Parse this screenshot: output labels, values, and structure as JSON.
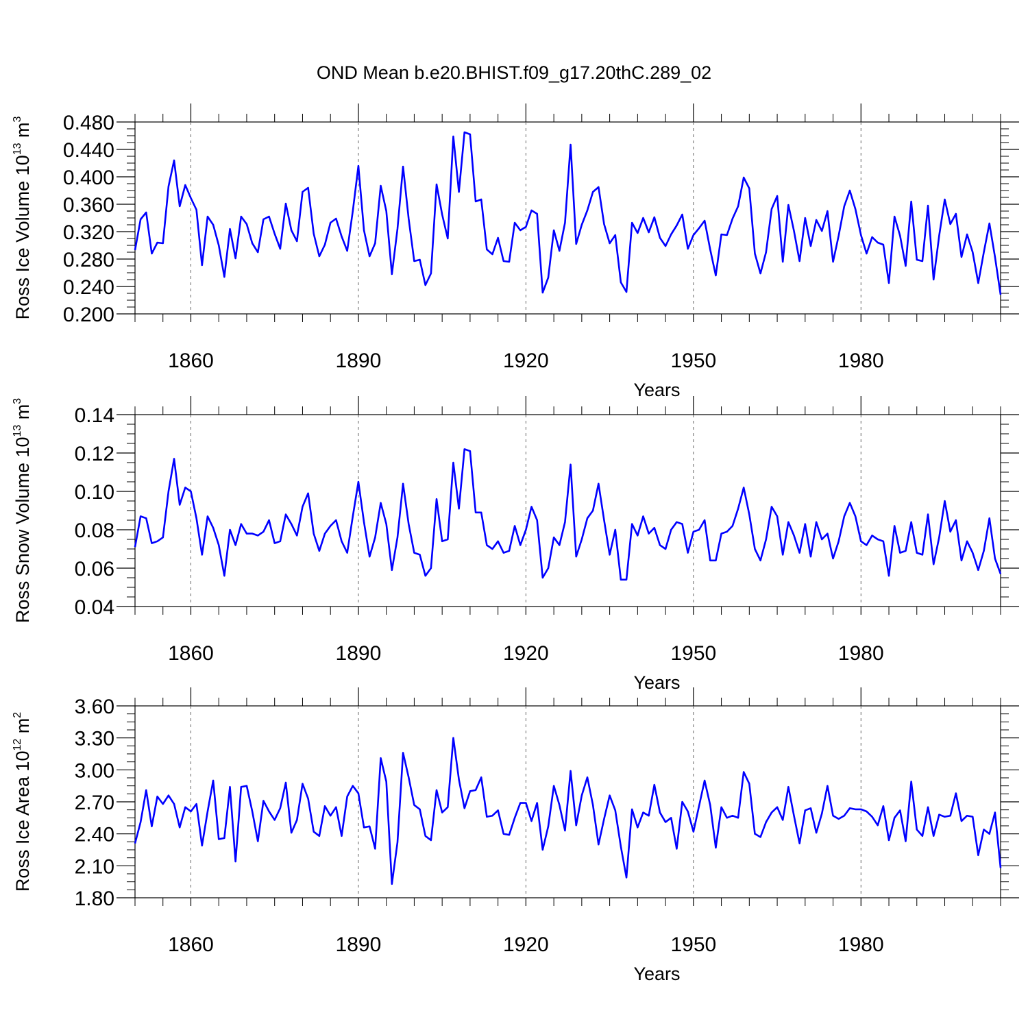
{
  "title": "OND Mean b.e20.BHIST.f09_g17.20thC.289_02",
  "chart_data": [
    {
      "type": "line",
      "id": "ice-volume",
      "color": "#0000ff",
      "ylabel": {
        "text": "Ross Ice Volume 10",
        "exp": "13",
        "unit": "m",
        "unit_exp": "3"
      },
      "xlabel": "Years",
      "xlim": [
        1850,
        2005
      ],
      "ylim": [
        0.2,
        0.48
      ],
      "yticks": [
        0.2,
        0.24,
        0.28,
        0.32,
        0.36,
        0.4,
        0.44,
        0.48
      ],
      "ytick_labels": [
        "0.200",
        "0.240",
        "0.280",
        "0.320",
        "0.360",
        "0.400",
        "0.440",
        "0.480"
      ],
      "xticks": [
        1860,
        1890,
        1920,
        1950,
        1980
      ],
      "xtick_labels": [
        "1860",
        "1890",
        "1920",
        "1950",
        "1980"
      ],
      "x_start": 1850,
      "values": [
        0.293,
        0.338,
        0.348,
        0.288,
        0.304,
        0.303,
        0.386,
        0.424,
        0.357,
        0.388,
        0.369,
        0.352,
        0.271,
        0.342,
        0.33,
        0.3,
        0.254,
        0.324,
        0.281,
        0.342,
        0.331,
        0.303,
        0.29,
        0.338,
        0.342,
        0.317,
        0.295,
        0.361,
        0.322,
        0.306,
        0.378,
        0.384,
        0.317,
        0.284,
        0.301,
        0.333,
        0.339,
        0.313,
        0.292,
        0.35,
        0.416,
        0.322,
        0.284,
        0.303,
        0.387,
        0.35,
        0.258,
        0.324,
        0.415,
        0.339,
        0.277,
        0.279,
        0.242,
        0.259,
        0.389,
        0.345,
        0.31,
        0.459,
        0.378,
        0.465,
        0.462,
        0.364,
        0.367,
        0.294,
        0.287,
        0.311,
        0.277,
        0.276,
        0.333,
        0.322,
        0.327,
        0.351,
        0.346,
        0.231,
        0.253,
        0.322,
        0.292,
        0.333,
        0.447,
        0.302,
        0.33,
        0.351,
        0.378,
        0.385,
        0.331,
        0.303,
        0.315,
        0.246,
        0.232,
        0.333,
        0.318,
        0.34,
        0.319,
        0.341,
        0.311,
        0.299,
        0.316,
        0.329,
        0.345,
        0.295,
        0.315,
        0.325,
        0.336,
        0.294,
        0.256,
        0.316,
        0.315,
        0.339,
        0.357,
        0.399,
        0.383,
        0.288,
        0.259,
        0.29,
        0.353,
        0.372,
        0.276,
        0.359,
        0.321,
        0.277,
        0.34,
        0.299,
        0.337,
        0.321,
        0.35,
        0.276,
        0.314,
        0.357,
        0.38,
        0.353,
        0.315,
        0.288,
        0.312,
        0.304,
        0.301,
        0.245,
        0.342,
        0.314,
        0.27,
        0.364,
        0.279,
        0.277,
        0.358,
        0.25,
        0.314,
        0.367,
        0.331,
        0.346,
        0.283,
        0.316,
        0.29,
        0.245,
        0.29,
        0.332,
        0.283,
        0.228
      ]
    },
    {
      "type": "line",
      "id": "snow-volume",
      "color": "#0000ff",
      "ylabel": {
        "text": "Ross Snow Volume 10",
        "exp": "13",
        "unit": "m",
        "unit_exp": "3"
      },
      "xlabel": "Years",
      "xlim": [
        1850,
        2005
      ],
      "ylim": [
        0.04,
        0.14
      ],
      "yticks": [
        0.04,
        0.06,
        0.08,
        0.1,
        0.12,
        0.14
      ],
      "ytick_labels": [
        "0.04",
        "0.06",
        "0.08",
        "0.10",
        "0.12",
        "0.14"
      ],
      "xticks": [
        1860,
        1890,
        1920,
        1950,
        1980
      ],
      "xtick_labels": [
        "1860",
        "1890",
        "1920",
        "1950",
        "1980"
      ],
      "x_start": 1850,
      "values": [
        0.071,
        0.087,
        0.086,
        0.073,
        0.074,
        0.076,
        0.1,
        0.117,
        0.093,
        0.102,
        0.1,
        0.086,
        0.067,
        0.087,
        0.081,
        0.072,
        0.056,
        0.08,
        0.072,
        0.083,
        0.078,
        0.078,
        0.077,
        0.079,
        0.085,
        0.073,
        0.074,
        0.088,
        0.083,
        0.077,
        0.092,
        0.099,
        0.078,
        0.069,
        0.078,
        0.082,
        0.085,
        0.074,
        0.068,
        0.087,
        0.105,
        0.084,
        0.066,
        0.076,
        0.094,
        0.083,
        0.059,
        0.076,
        0.104,
        0.083,
        0.068,
        0.067,
        0.056,
        0.06,
        0.096,
        0.074,
        0.075,
        0.115,
        0.091,
        0.122,
        0.121,
        0.089,
        0.089,
        0.072,
        0.07,
        0.074,
        0.068,
        0.069,
        0.082,
        0.072,
        0.08,
        0.092,
        0.085,
        0.055,
        0.06,
        0.076,
        0.072,
        0.084,
        0.114,
        0.066,
        0.075,
        0.086,
        0.09,
        0.104,
        0.085,
        0.067,
        0.08,
        0.054,
        0.054,
        0.083,
        0.077,
        0.087,
        0.078,
        0.081,
        0.072,
        0.07,
        0.08,
        0.084,
        0.083,
        0.068,
        0.079,
        0.08,
        0.085,
        0.064,
        0.064,
        0.078,
        0.079,
        0.082,
        0.091,
        0.102,
        0.088,
        0.07,
        0.064,
        0.075,
        0.092,
        0.087,
        0.067,
        0.084,
        0.077,
        0.068,
        0.083,
        0.066,
        0.084,
        0.075,
        0.078,
        0.065,
        0.074,
        0.087,
        0.094,
        0.087,
        0.074,
        0.072,
        0.077,
        0.075,
        0.074,
        0.056,
        0.082,
        0.068,
        0.069,
        0.084,
        0.068,
        0.067,
        0.088,
        0.062,
        0.076,
        0.095,
        0.079,
        0.085,
        0.064,
        0.074,
        0.068,
        0.059,
        0.069,
        0.086,
        0.065,
        0.057
      ]
    },
    {
      "type": "line",
      "id": "ice-area",
      "color": "#0000ff",
      "ylabel": {
        "text": "Ross Ice Area 10",
        "exp": "12",
        "unit": "m",
        "unit_exp": "2"
      },
      "xlabel": "Years",
      "xlim": [
        1850,
        2005
      ],
      "ylim": [
        1.8,
        3.6
      ],
      "yticks": [
        1.8,
        2.1,
        2.4,
        2.7,
        3.0,
        3.3,
        3.6
      ],
      "ytick_labels": [
        "1.80",
        "2.10",
        "2.40",
        "2.70",
        "3.00",
        "3.30",
        "3.60"
      ],
      "xticks": [
        1860,
        1890,
        1920,
        1950,
        1980
      ],
      "xtick_labels": [
        "1860",
        "1890",
        "1920",
        "1950",
        "1980"
      ],
      "x_start": 1850,
      "values": [
        2.31,
        2.51,
        2.81,
        2.47,
        2.75,
        2.68,
        2.76,
        2.68,
        2.46,
        2.65,
        2.61,
        2.68,
        2.29,
        2.61,
        2.9,
        2.35,
        2.36,
        2.84,
        2.14,
        2.84,
        2.85,
        2.61,
        2.33,
        2.71,
        2.61,
        2.53,
        2.64,
        2.88,
        2.41,
        2.53,
        2.87,
        2.73,
        2.42,
        2.38,
        2.66,
        2.57,
        2.65,
        2.38,
        2.75,
        2.85,
        2.78,
        2.46,
        2.47,
        2.26,
        3.11,
        2.89,
        1.93,
        2.32,
        3.16,
        2.93,
        2.67,
        2.63,
        2.38,
        2.34,
        2.81,
        2.6,
        2.65,
        3.3,
        2.91,
        2.64,
        2.8,
        2.81,
        2.93,
        2.56,
        2.57,
        2.62,
        2.4,
        2.39,
        2.55,
        2.69,
        2.69,
        2.52,
        2.69,
        2.25,
        2.47,
        2.85,
        2.67,
        2.43,
        2.99,
        2.48,
        2.76,
        2.93,
        2.67,
        2.3,
        2.54,
        2.76,
        2.62,
        2.28,
        1.99,
        2.63,
        2.46,
        2.6,
        2.57,
        2.86,
        2.6,
        2.51,
        2.55,
        2.26,
        2.7,
        2.61,
        2.42,
        2.66,
        2.9,
        2.67,
        2.27,
        2.65,
        2.55,
        2.57,
        2.55,
        2.98,
        2.87,
        2.4,
        2.37,
        2.51,
        2.6,
        2.65,
        2.53,
        2.84,
        2.57,
        2.31,
        2.62,
        2.64,
        2.41,
        2.59,
        2.85,
        2.57,
        2.54,
        2.57,
        2.64,
        2.63,
        2.63,
        2.61,
        2.56,
        2.48,
        2.66,
        2.34,
        2.55,
        2.62,
        2.33,
        2.89,
        2.44,
        2.38,
        2.65,
        2.38,
        2.58,
        2.56,
        2.57,
        2.78,
        2.52,
        2.57,
        2.56,
        2.2,
        2.44,
        2.4,
        2.6,
        2.08
      ]
    }
  ]
}
